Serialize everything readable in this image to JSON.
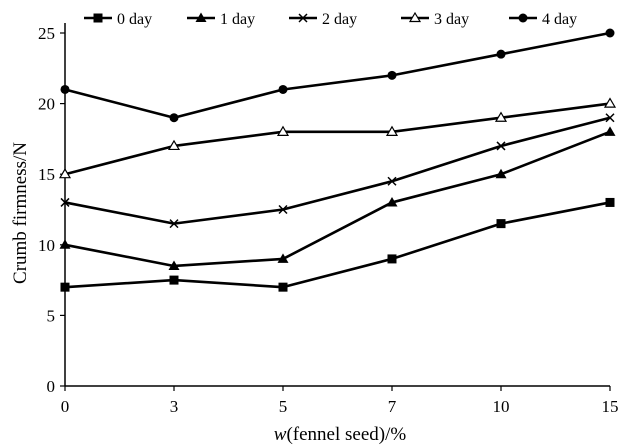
{
  "chart_data": {
    "type": "line",
    "x": [
      "0",
      "3",
      "5",
      "7",
      "10",
      "15"
    ],
    "xlabel_prefix": "w",
    "xlabel_rest": "(fennel seed)/%",
    "ylabel": "Crumb firmness/N",
    "ylim": [
      0,
      25
    ],
    "yticks": [
      0,
      5,
      10,
      15,
      20,
      25
    ],
    "grid": false,
    "legend_position": "top",
    "series": [
      {
        "name": "0 day",
        "marker": "square",
        "values": [
          7,
          7.5,
          7,
          9,
          11.5,
          13
        ]
      },
      {
        "name": "1 day",
        "marker": "filled-triangle",
        "values": [
          10,
          8.5,
          9,
          13,
          15,
          18
        ]
      },
      {
        "name": "2 day",
        "marker": "cross",
        "values": [
          13,
          11.5,
          12.5,
          14.5,
          17,
          19
        ]
      },
      {
        "name": "3  day",
        "marker": "open-triangle",
        "values": [
          15,
          17,
          18,
          18,
          19,
          20
        ]
      },
      {
        "name": "4 day",
        "marker": "circle",
        "values": [
          21,
          19,
          21,
          22,
          23.5,
          25
        ]
      }
    ],
    "line_color": "#000000"
  }
}
